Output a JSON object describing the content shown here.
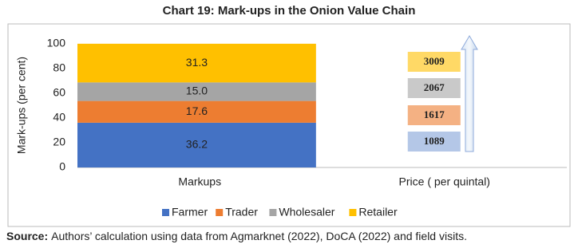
{
  "chart_data": {
    "type": "stacked-bar",
    "title": "Chart 19: Mark-ups in the Onion Value Chain",
    "ylabel": "Mark-ups (per cent)",
    "categories": [
      "Markups",
      "Price ( per quintal)"
    ],
    "series": [
      {
        "name": "Farmer",
        "color": "#4472c4",
        "values": [
          36.2,
          null
        ]
      },
      {
        "name": "Trader",
        "color": "#ed7d31",
        "values": [
          17.6,
          null
        ]
      },
      {
        "name": "Wholesaler",
        "color": "#a5a5a5",
        "values": [
          15.0,
          null
        ],
        "value_labels": [
          "15.0",
          null
        ]
      },
      {
        "name": "Retailer",
        "color": "#ffc000",
        "values": [
          31.3,
          null
        ]
      }
    ],
    "price_boxes": {
      "values": [
        1089,
        1617,
        2067,
        3009
      ],
      "colors": [
        "#b4c7e7",
        "#f4b183",
        "#c9c9c9",
        "#ffd966"
      ]
    },
    "ylim": [
      0,
      100
    ],
    "yticks": [
      0,
      20,
      40,
      60,
      80,
      100
    ],
    "grid": false,
    "legend": "bottom",
    "source": {
      "label": "Source:",
      "text": "Authors’ calculation using data from Agmarknet (2022), DoCA (2022) and field visits."
    }
  }
}
